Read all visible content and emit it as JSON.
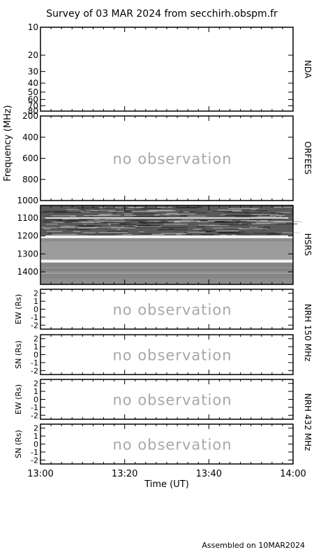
{
  "title": "Survey of 03 MAR 2024 from secchirh.obspm.fr",
  "footer": "Assembled on 10MAR2024",
  "no_observation_text": "no observation",
  "colors": {
    "no_observation": "#a8a8a8",
    "hsrs_background": "#8c8c8c",
    "frame": "#000000"
  },
  "chart_data": {
    "type": "heatmap",
    "x_axis": {
      "label": "Time (UT)",
      "range": [
        "13:00",
        "14:00"
      ],
      "tick_labels": [
        "13:00",
        "13:20",
        "13:40",
        "14:00"
      ]
    },
    "shared_ylabel": "Frequency (MHz)",
    "panels": [
      {
        "name": "NDA",
        "ylabel": "",
        "y_range": [
          10,
          80
        ],
        "y_scale": "log",
        "y_ticks": [
          10,
          20,
          30,
          40,
          50,
          60,
          70,
          80
        ],
        "observed": false,
        "no_observation_label": false
      },
      {
        "name": "ORFEES",
        "ylabel": "",
        "y_range": [
          200,
          1000
        ],
        "y_scale": "linear",
        "y_ticks": [
          200,
          400,
          600,
          800,
          1000
        ],
        "observed": false,
        "no_observation_label": true
      },
      {
        "name": "HSRS",
        "ylabel": "",
        "y_range": [
          1030,
          1470
        ],
        "y_scale": "linear",
        "y_ticks": [
          1100,
          1200,
          1300,
          1400
        ],
        "observed": true,
        "bright_bands_mhz": [
          1205,
          1340
        ],
        "no_observation_label": false
      },
      {
        "name": "NRH 150 MHz",
        "ylabel": "EW (Rs)",
        "y_range": [
          -2.5,
          2.5
        ],
        "y_scale": "linear",
        "y_ticks": [
          -2,
          -1,
          0,
          1,
          2
        ],
        "observed": false,
        "no_observation_label": true
      },
      {
        "name": "NRH 150 MHz",
        "ylabel": "SN (Rs)",
        "y_range": [
          -2.5,
          2.5
        ],
        "y_scale": "linear",
        "y_ticks": [
          -2,
          -1,
          0,
          1,
          2
        ],
        "observed": false,
        "no_observation_label": true
      },
      {
        "name": "NRH 432 MHz",
        "ylabel": "EW (Rs)",
        "y_range": [
          -2.5,
          2.5
        ],
        "y_scale": "linear",
        "y_ticks": [
          -2,
          -1,
          0,
          1,
          2
        ],
        "observed": false,
        "no_observation_label": true
      },
      {
        "name": "NRH 432 MHz",
        "ylabel": "SN (Rs)",
        "y_range": [
          -2.5,
          2.5
        ],
        "y_scale": "linear",
        "y_ticks": [
          -2,
          -1,
          0,
          1,
          2
        ],
        "observed": false,
        "no_observation_label": true
      }
    ],
    "side_labels": [
      "NDA",
      "ORFEES",
      "HSRS",
      "NRH 150 MHz",
      "NRH 432 MHz"
    ]
  }
}
